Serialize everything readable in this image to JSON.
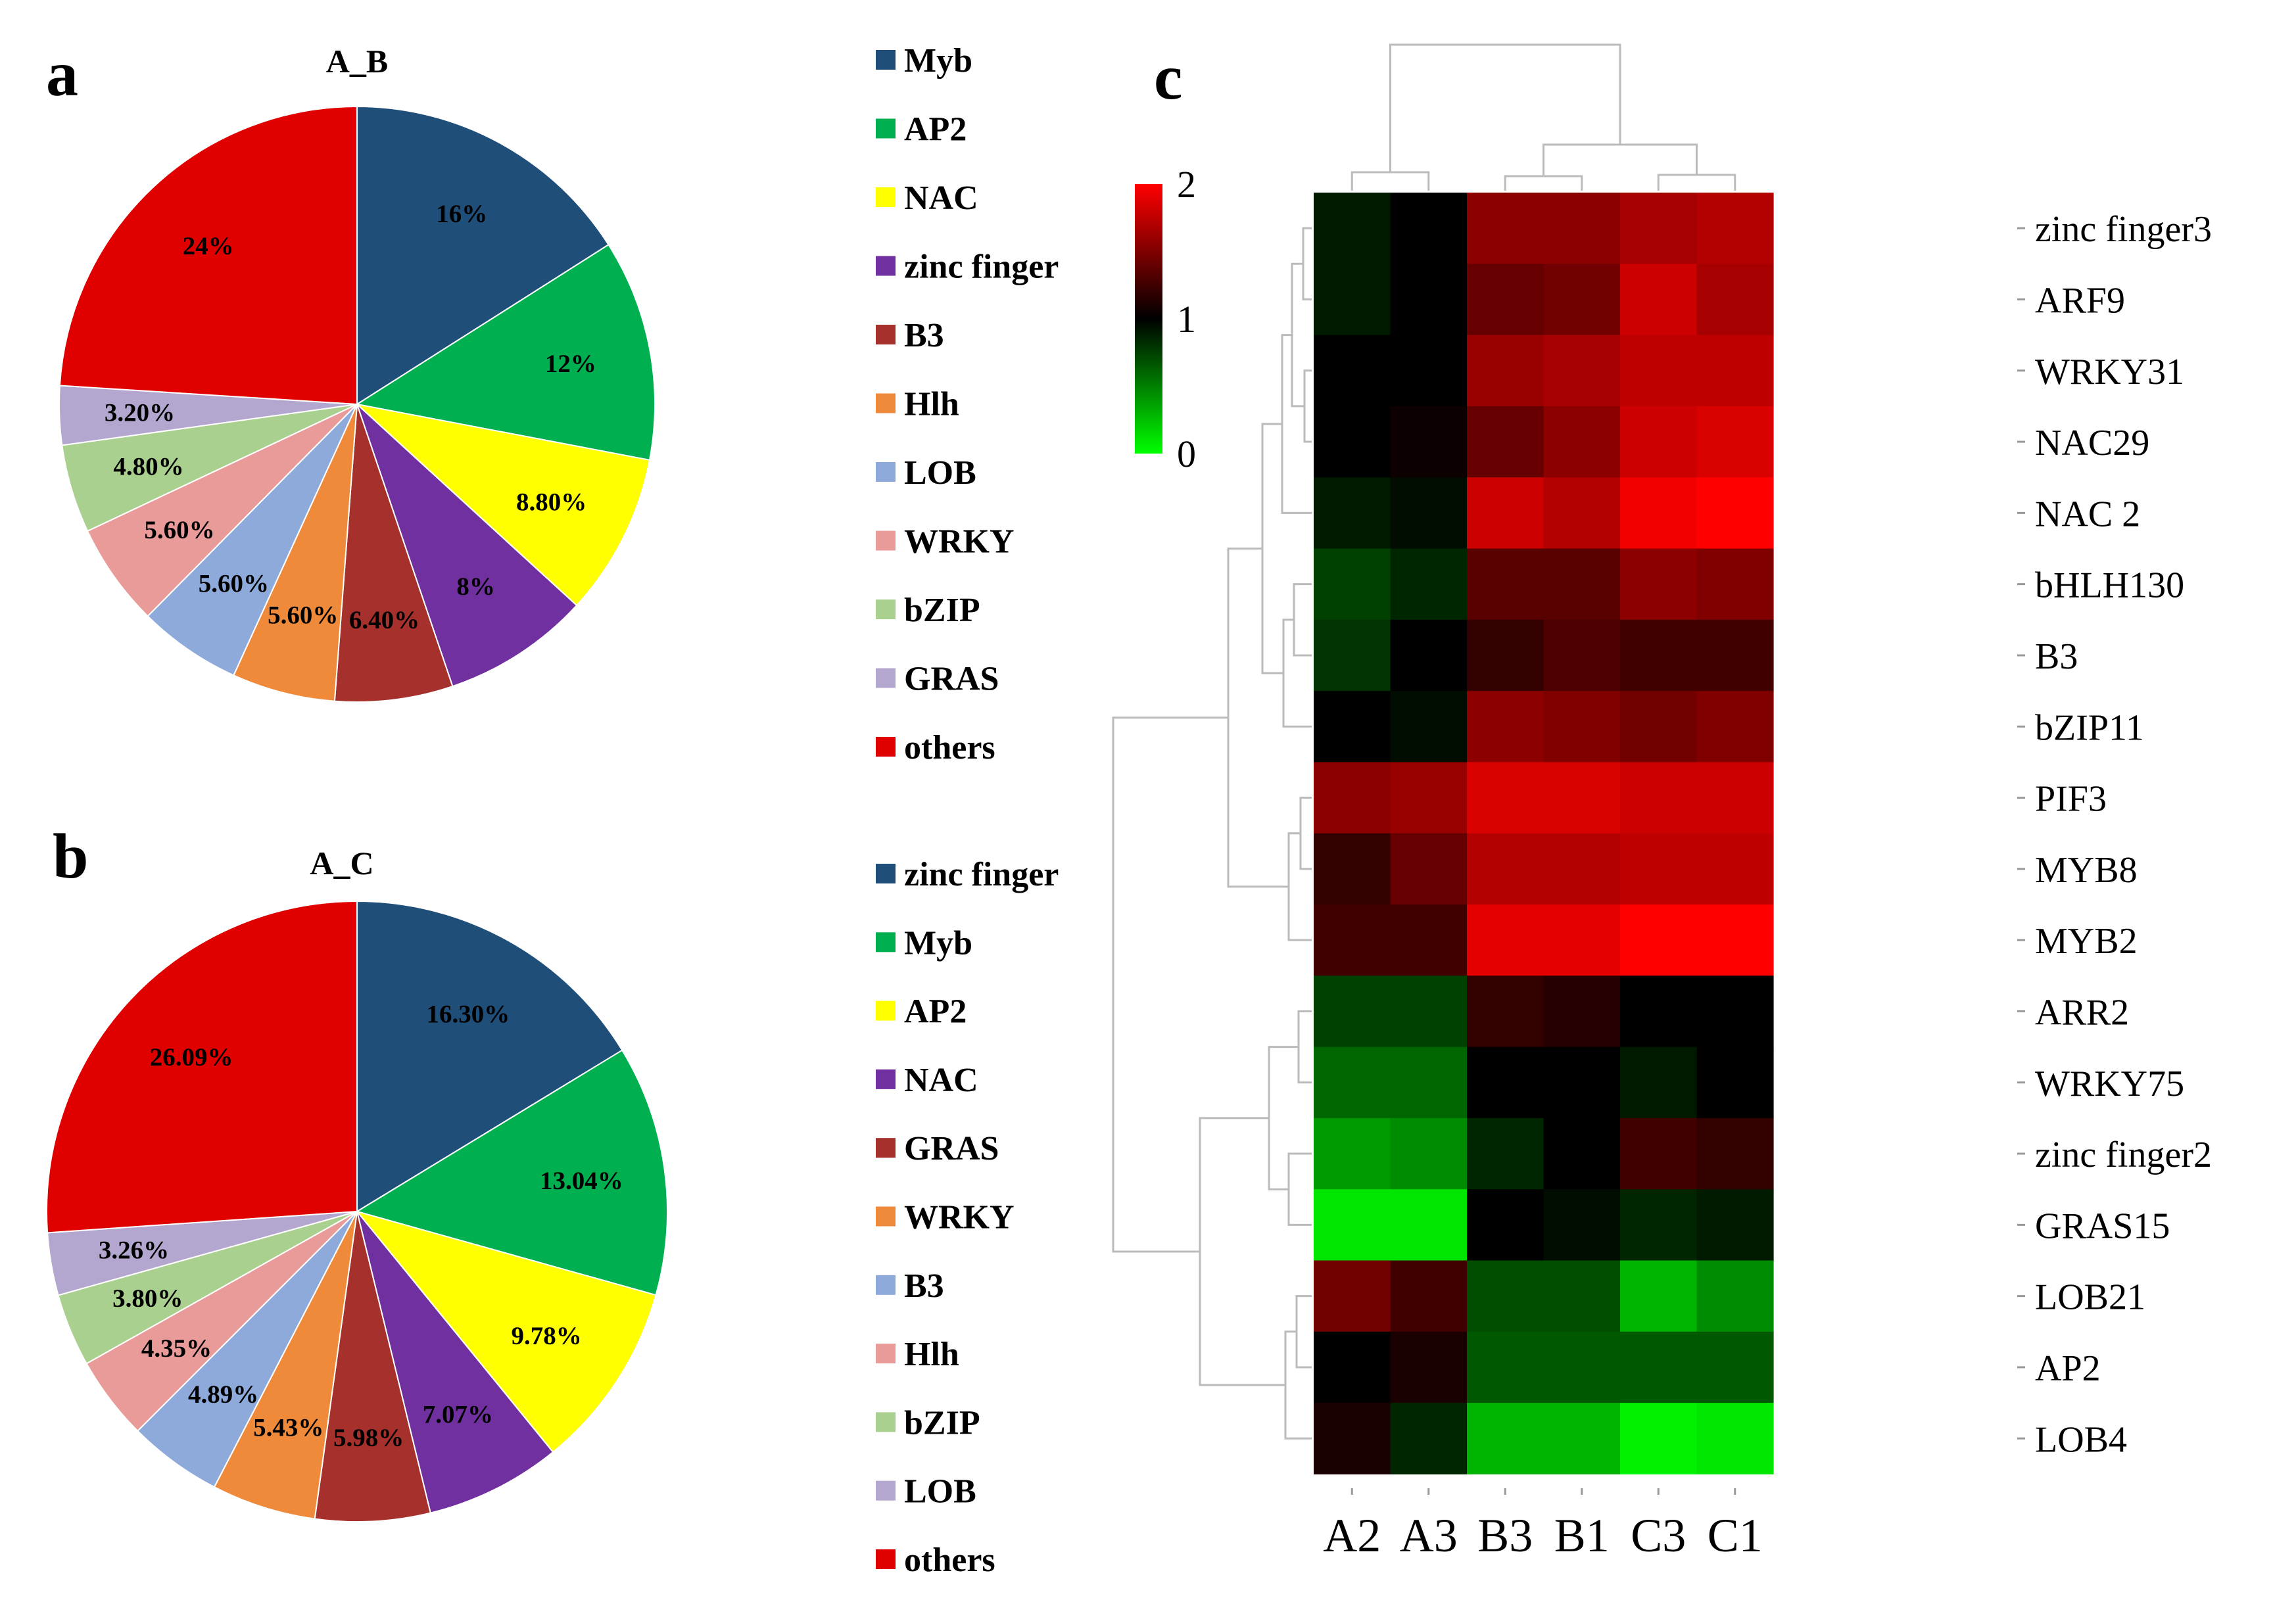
{
  "chart_data": [
    {
      "type": "pie",
      "panel": "a",
      "title": "A_B",
      "slices": [
        {
          "name": "Myb",
          "value": 16,
          "label": "16%",
          "color": "#1f4e79"
        },
        {
          "name": "AP2",
          "value": 12,
          "label": "12%",
          "color": "#00b050"
        },
        {
          "name": "NAC",
          "value": 8.8,
          "label": "8.80%",
          "color": "#ffff00"
        },
        {
          "name": "zinc finger",
          "value": 8,
          "label": "8%",
          "color": "#7030a0"
        },
        {
          "name": "B3",
          "value": 6.4,
          "label": "6.40%",
          "color": "#a5302c"
        },
        {
          "name": "Hlh",
          "value": 5.6,
          "label": "5.60%",
          "color": "#f08a3b"
        },
        {
          "name": "LOB",
          "value": 5.6,
          "label": "5.60%",
          "color": "#8eaadb"
        },
        {
          "name": "WRKY",
          "value": 5.6,
          "label": "5.60%",
          "color": "#e99b99"
        },
        {
          "name": "bZIP",
          "value": 4.8,
          "label": "4.80%",
          "color": "#a9d08e"
        },
        {
          "name": "GRAS",
          "value": 3.2,
          "label": "3.20%",
          "color": "#b4a7cf"
        },
        {
          "name": "others",
          "value": 24,
          "label": "24%",
          "color": "#e00000"
        }
      ]
    },
    {
      "type": "pie",
      "panel": "b",
      "title": "A_C",
      "slices": [
        {
          "name": "zinc finger",
          "value": 16.3,
          "label": "16.30%",
          "color": "#1f4e79"
        },
        {
          "name": "Myb",
          "value": 13.04,
          "label": "13.04%",
          "color": "#00b050"
        },
        {
          "name": "AP2",
          "value": 9.78,
          "label": "9.78%",
          "color": "#ffff00"
        },
        {
          "name": "NAC",
          "value": 7.07,
          "label": "7.07%",
          "color": "#7030a0"
        },
        {
          "name": "GRAS",
          "value": 5.98,
          "label": "5.98%",
          "color": "#a5302c"
        },
        {
          "name": "WRKY",
          "value": 5.43,
          "label": "5.43%",
          "color": "#f08a3b"
        },
        {
          "name": "B3",
          "value": 4.89,
          "label": "4.89%",
          "color": "#8eaadb"
        },
        {
          "name": "Hlh",
          "value": 4.35,
          "label": "4.35%",
          "color": "#e99b99"
        },
        {
          "name": "bZIP",
          "value": 3.8,
          "label": "3.80%",
          "color": "#a9d08e"
        },
        {
          "name": "LOB",
          "value": 3.26,
          "label": "3.26%",
          "color": "#b4a7cf"
        },
        {
          "name": "others",
          "value": 26.09,
          "label": "26.09%",
          "color": "#e00000"
        }
      ]
    },
    {
      "type": "heatmap",
      "panel": "c",
      "columns": [
        "A2",
        "A3",
        "B3",
        "B1",
        "C3",
        "C1"
      ],
      "rows": [
        "zinc finger3",
        "ARF9",
        "WRKY31",
        "NAC29",
        "NAC 2",
        "bHLH130",
        "B3",
        "bZIP11",
        "PIF3",
        "MYB8",
        "MYB2",
        "ARR2",
        "WRKY75",
        "zinc finger2",
        "GRAS15",
        "LOB21",
        "AP2",
        "LOB4"
      ],
      "values": [
        [
          0.9,
          1.0,
          1.55,
          1.55,
          1.65,
          1.7
        ],
        [
          0.9,
          1.0,
          1.4,
          1.45,
          1.8,
          1.65
        ],
        [
          1.0,
          1.0,
          1.6,
          1.65,
          1.75,
          1.75
        ],
        [
          1.0,
          1.05,
          1.4,
          1.55,
          1.8,
          1.85
        ],
        [
          0.9,
          0.95,
          1.8,
          1.7,
          1.95,
          2.0
        ],
        [
          0.75,
          0.85,
          1.35,
          1.35,
          1.55,
          1.5
        ],
        [
          0.8,
          1.0,
          1.2,
          1.3,
          1.25,
          1.25
        ],
        [
          1.0,
          0.95,
          1.55,
          1.5,
          1.45,
          1.5
        ],
        [
          1.55,
          1.6,
          1.85,
          1.85,
          1.8,
          1.8
        ],
        [
          1.2,
          1.4,
          1.7,
          1.7,
          1.75,
          1.75
        ],
        [
          1.25,
          1.25,
          1.9,
          1.9,
          2.0,
          2.0
        ],
        [
          0.75,
          0.75,
          1.2,
          1.15,
          1.0,
          1.0
        ],
        [
          0.6,
          0.6,
          1.0,
          1.0,
          0.9,
          1.0
        ],
        [
          0.4,
          0.45,
          0.85,
          1.0,
          1.25,
          1.2
        ],
        [
          0.1,
          0.1,
          1.0,
          0.95,
          0.85,
          0.9
        ],
        [
          1.45,
          1.25,
          0.7,
          0.7,
          0.3,
          0.45
        ],
        [
          1.0,
          1.1,
          0.65,
          0.65,
          0.65,
          0.65
        ],
        [
          1.1,
          0.85,
          0.3,
          0.3,
          0.05,
          0.1
        ]
      ],
      "color_scale": {
        "min": 0,
        "mid": 1,
        "max": 2,
        "low_color": "#00ff00",
        "mid_color": "#000000",
        "high_color": "#ff0000",
        "ticks": [
          "2",
          "1",
          "0"
        ]
      }
    }
  ],
  "panel_c_letter": "c"
}
